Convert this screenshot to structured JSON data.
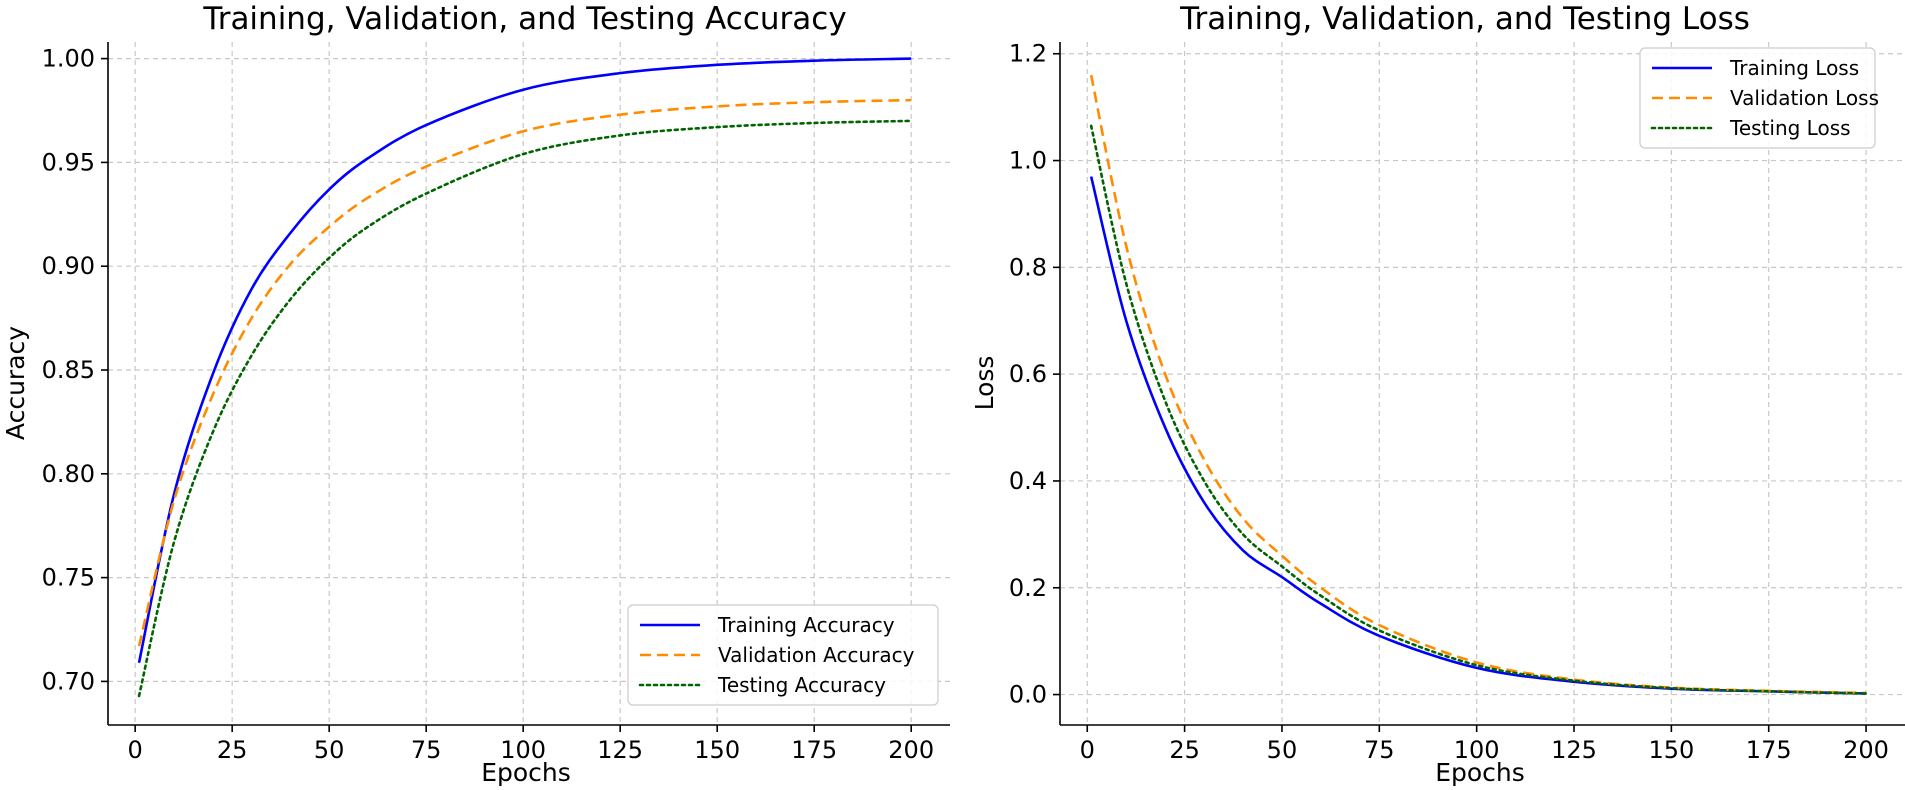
{
  "chart_data": [
    {
      "type": "line",
      "title": "Training, Validation, and Testing Accuracy",
      "xlabel": "Epochs",
      "ylabel": "Accuracy",
      "xlim": [
        -7,
        210
      ],
      "ylim": [
        0.679,
        1.008
      ],
      "xticks": [
        0,
        25,
        50,
        75,
        100,
        125,
        150,
        175,
        200
      ],
      "yticks": [
        0.7,
        0.75,
        0.8,
        0.85,
        0.9,
        0.95,
        1.0
      ],
      "ytick_labels": [
        "0.70",
        "0.75",
        "0.80",
        "0.85",
        "0.90",
        "0.95",
        "1.00"
      ],
      "grid": true,
      "legend_position": "lower-right",
      "x": [
        1,
        10,
        20,
        30,
        40,
        50,
        60,
        75,
        100,
        125,
        150,
        175,
        200
      ],
      "series": [
        {
          "name": "Training Accuracy",
          "color": "#0000ff",
          "style": "solid",
          "values": [
            0.709,
            0.79,
            0.848,
            0.889,
            0.916,
            0.937,
            0.952,
            0.968,
            0.985,
            0.993,
            0.997,
            0.999,
            1.0
          ]
        },
        {
          "name": "Validation Accuracy",
          "color": "#ff8c00",
          "style": "dashed",
          "values": [
            0.717,
            0.787,
            0.838,
            0.875,
            0.901,
            0.919,
            0.933,
            0.948,
            0.965,
            0.973,
            0.977,
            0.979,
            0.98
          ]
        },
        {
          "name": "Testing Accuracy",
          "color": "#006400",
          "style": "dotted",
          "values": [
            0.693,
            0.767,
            0.82,
            0.857,
            0.884,
            0.904,
            0.919,
            0.935,
            0.954,
            0.963,
            0.967,
            0.969,
            0.97
          ]
        }
      ]
    },
    {
      "type": "line",
      "title": "Training, Validation, and Testing Loss",
      "xlabel": "Epochs",
      "ylabel": "Loss",
      "xlim": [
        -7,
        210
      ],
      "ylim": [
        -0.057,
        1.222
      ],
      "xticks": [
        0,
        25,
        50,
        75,
        100,
        125,
        150,
        175,
        200
      ],
      "yticks": [
        0.0,
        0.2,
        0.4,
        0.6,
        0.8,
        1.0,
        1.2
      ],
      "ytick_labels": [
        "0.0",
        "0.2",
        "0.4",
        "0.6",
        "0.8",
        "1.0",
        "1.2"
      ],
      "grid": true,
      "legend_position": "upper-right",
      "x": [
        1,
        10,
        20,
        30,
        40,
        50,
        60,
        75,
        100,
        125,
        150,
        175,
        200
      ],
      "series": [
        {
          "name": "Training Loss",
          "color": "#0000ff",
          "style": "solid",
          "values": [
            0.97,
            0.7,
            0.5,
            0.36,
            0.27,
            0.22,
            0.17,
            0.11,
            0.05,
            0.024,
            0.011,
            0.006,
            0.002
          ]
        },
        {
          "name": "Validation Loss",
          "color": "#ff8c00",
          "style": "dashed",
          "values": [
            1.16,
            0.84,
            0.6,
            0.44,
            0.33,
            0.26,
            0.2,
            0.13,
            0.06,
            0.028,
            0.013,
            0.007,
            0.003
          ]
        },
        {
          "name": "Testing Loss",
          "color": "#006400",
          "style": "dotted",
          "values": [
            1.065,
            0.77,
            0.55,
            0.4,
            0.3,
            0.24,
            0.185,
            0.12,
            0.055,
            0.026,
            0.012,
            0.006,
            0.002
          ]
        }
      ]
    }
  ]
}
